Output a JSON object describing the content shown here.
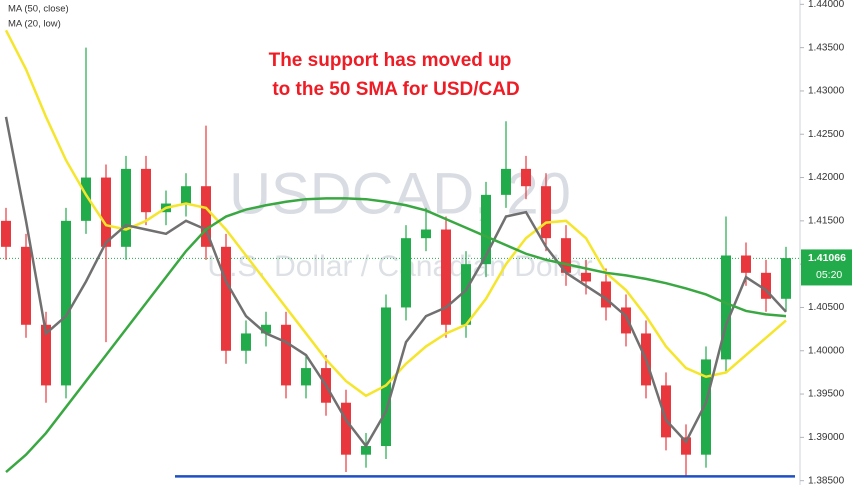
{
  "chart_data": {
    "type": "candlestick",
    "watermark": "USDCAD, 20",
    "watermark_sub": "U.S. Dollar / Canadian Dollar",
    "annotation": [
      "The support has moved up",
      "to the 50 SMA for USD/CAD"
    ],
    "annotation_color": "#ee1c25",
    "up_color": "#22ab4a",
    "down_color": "#e8383d",
    "open": [
      1.415,
      1.412,
      1.403,
      1.396,
      1.415,
      1.42,
      1.412,
      1.421,
      1.416,
      1.417,
      1.419,
      1.412,
      1.4,
      1.402,
      1.403,
      1.396,
      1.398,
      1.394,
      1.388,
      1.389,
      1.405,
      1.413,
      1.414,
      1.403,
      1.41,
      1.418,
      1.421,
      1.419,
      1.413,
      1.409,
      1.408,
      1.405,
      1.402,
      1.396,
      1.39,
      1.388,
      1.399,
      1.411,
      1.409,
      1.406
    ],
    "high": [
      1.4165,
      1.4135,
      1.4045,
      1.4165,
      1.435,
      1.4215,
      1.4225,
      1.4225,
      1.4185,
      1.4205,
      1.426,
      1.4135,
      1.4035,
      1.4045,
      1.4045,
      1.3995,
      1.3995,
      1.3955,
      1.3905,
      1.4065,
      1.4145,
      1.4165,
      1.4155,
      1.4115,
      1.4195,
      1.4265,
      1.4225,
      1.4205,
      1.4145,
      1.4105,
      1.4095,
      1.4065,
      1.4035,
      1.3975,
      1.3915,
      1.4005,
      1.4155,
      1.4125,
      1.4105,
      1.412
    ],
    "low": [
      1.4105,
      1.4015,
      1.394,
      1.3945,
      1.4135,
      1.401,
      1.4105,
      1.4145,
      1.4145,
      1.4155,
      1.4105,
      1.3985,
      1.3985,
      1.4005,
      1.3945,
      1.3945,
      1.3925,
      1.386,
      1.3865,
      1.3875,
      1.4035,
      1.4115,
      1.4015,
      1.4015,
      1.4085,
      1.4165,
      1.4175,
      1.4115,
      1.4075,
      1.4065,
      1.4035,
      1.4005,
      1.3945,
      1.3885,
      1.3855,
      1.3865,
      1.3975,
      1.4075,
      1.4045,
      1.4045
    ],
    "close": [
      1.412,
      1.403,
      1.396,
      1.415,
      1.42,
      1.412,
      1.421,
      1.416,
      1.417,
      1.419,
      1.412,
      1.4,
      1.402,
      1.403,
      1.396,
      1.398,
      1.394,
      1.388,
      1.389,
      1.405,
      1.413,
      1.414,
      1.403,
      1.41,
      1.418,
      1.421,
      1.419,
      1.413,
      1.409,
      1.408,
      1.405,
      1.402,
      1.396,
      1.39,
      1.388,
      1.399,
      1.411,
      1.409,
      1.406,
      1.4107
    ],
    "series": [
      {
        "name": "MA (50, close)",
        "color": "#f5e52b",
        "values": [
          1.437,
          1.4325,
          1.427,
          1.422,
          1.418,
          1.4145,
          1.414,
          1.415,
          1.4165,
          1.417,
          1.4165,
          1.414,
          1.411,
          1.408,
          1.405,
          1.402,
          1.399,
          1.3965,
          1.3948,
          1.396,
          1.3985,
          1.4005,
          1.402,
          1.403,
          1.406,
          1.41,
          1.413,
          1.4148,
          1.415,
          1.413,
          1.409,
          1.407,
          1.404,
          1.4005,
          1.398,
          1.397,
          1.3975,
          1.3995,
          1.4015,
          1.4035
        ]
      },
      {
        "name": "MA (20, low)",
        "color": "#707070",
        "values": [
          1.427,
          1.415,
          1.402,
          1.404,
          1.408,
          1.4125,
          1.4145,
          1.414,
          1.4135,
          1.415,
          1.414,
          1.408,
          1.404,
          1.402,
          1.401,
          1.3995,
          1.396,
          1.392,
          1.389,
          1.393,
          1.401,
          1.404,
          1.405,
          1.407,
          1.411,
          1.4155,
          1.416,
          1.412,
          1.409,
          1.4075,
          1.406,
          1.404,
          1.399,
          1.392,
          1.3895,
          1.394,
          1.403,
          1.4085,
          1.407,
          1.4045
        ]
      },
      {
        "color": "#3aa842",
        "values": [
          1.386,
          1.388,
          1.3905,
          1.3935,
          1.3965,
          1.3995,
          1.4025,
          1.4055,
          1.4085,
          1.4115,
          1.414,
          1.4155,
          1.4163,
          1.4168,
          1.4172,
          1.4175,
          1.4176,
          1.4176,
          1.4175,
          1.4172,
          1.4168,
          1.4162,
          1.4152,
          1.4142,
          1.4132,
          1.4122,
          1.4112,
          1.4105,
          1.41,
          1.4095,
          1.409,
          1.4087,
          1.4083,
          1.4078,
          1.4072,
          1.4065,
          1.4055,
          1.4046,
          1.4042,
          1.404
        ]
      }
    ],
    "support_level": 1.3855,
    "support_color": "#1f4fc4",
    "current_price": {
      "value": 1.41066,
      "label": "1.41066"
    },
    "countdown": "05:20",
    "ylim": [
      1.3845,
      1.4405
    ],
    "yticks": [
      {
        "value": 1.385,
        "label": "1.38500"
      },
      {
        "value": 1.39,
        "label": "1.39000"
      },
      {
        "value": 1.395,
        "label": "1.39500"
      },
      {
        "value": 1.4,
        "label": "1.40000"
      },
      {
        "value": 1.405,
        "label": "1.40500"
      },
      {
        "value": 1.41,
        "label": "1.41000"
      },
      {
        "value": 1.415,
        "label": "1.41500"
      },
      {
        "value": 1.42,
        "label": "1.42000"
      },
      {
        "value": 1.425,
        "label": "1.42500"
      },
      {
        "value": 1.43,
        "label": "1.43000"
      },
      {
        "value": 1.435,
        "label": "1.43500"
      },
      {
        "value": 1.44,
        "label": "1.44000"
      }
    ]
  }
}
